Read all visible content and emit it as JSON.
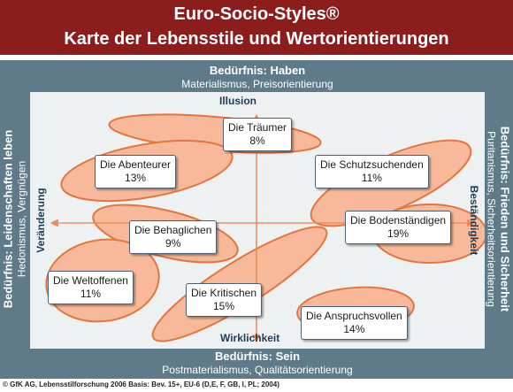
{
  "header": {
    "title": "Euro-Socio-Styles®",
    "subtitle": "Karte der Lebensstile und Wertorientierungen"
  },
  "edges": {
    "top": {
      "need": "Bedürfnis: Haben",
      "values": "Materialismus, Preisorientierung"
    },
    "bottom": {
      "need": "Bedürfnis: Sein",
      "values": "Postmaterialismus, Qualitätsorientierung"
    },
    "left": {
      "need": "Bedürfnis: Leidenschaften leben",
      "values": "Hedonismus, Vergnügen"
    },
    "right": {
      "need": "Bedürfnis: Frieden und Sicherheit",
      "values": "Puritanismus, Sicherheitsorientierung"
    }
  },
  "axes": {
    "top": "Illusion",
    "bottom": "Wirklichkeit",
    "left": "Veränderung",
    "right": "Beständigkeit"
  },
  "styles": [
    {
      "name": "Die Träumer",
      "share": "8%"
    },
    {
      "name": "Die Abenteurer",
      "share": "13%"
    },
    {
      "name": "Die Schutzsuchenden",
      "share": "11%"
    },
    {
      "name": "Die Behaglichen",
      "share": "9%"
    },
    {
      "name": "Die Bodenständigen",
      "share": "19%"
    },
    {
      "name": "Die Weltoffenen",
      "share": "11%"
    },
    {
      "name": "Die Kritischen",
      "share": "15%"
    },
    {
      "name": "Die Anspruchsvollen",
      "share": "14%"
    }
  ],
  "footer": "© GfK AG, Lebensstilforschung 2006 Basis: Bev. 15+, EU-6 (D,E, F, GB, I, PL; 2004)",
  "colors": {
    "header": "#8c1d1d",
    "frame": "#5f7b8a",
    "blob_fill": "#f7b99a",
    "blob_stroke": "#e3763f",
    "axis": "#ef8a55"
  }
}
